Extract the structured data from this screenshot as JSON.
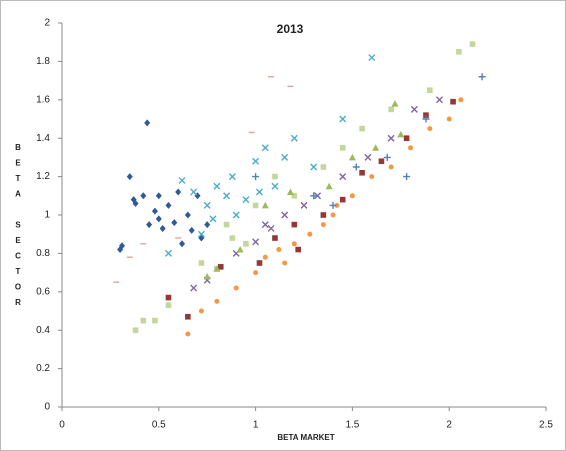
{
  "chart_data": {
    "type": "scatter",
    "title": "2013",
    "x_label": "BETA MARKET",
    "y_label": "BETA SECTOR",
    "xlim": [
      0,
      2.5
    ],
    "xticks": [
      0,
      0.5,
      1,
      1.5,
      2,
      2.5
    ],
    "ylim": [
      0,
      2
    ],
    "yticks": [
      0,
      0.2,
      0.4,
      0.6,
      0.8,
      1,
      1.2,
      1.4,
      1.6,
      1.8,
      2
    ],
    "grid": false,
    "series": [
      {
        "color": "#2e5a9c",
        "marker": "diamond",
        "x": [
          0.3,
          0.31,
          0.37,
          0.38,
          0.42,
          0.44,
          0.45,
          0.48,
          0.5,
          0.52,
          0.55,
          0.58,
          0.6,
          0.62,
          0.65,
          0.67,
          0.7,
          0.72,
          0.75,
          0.5,
          0.35
        ],
        "values": [
          0.82,
          0.84,
          1.08,
          1.06,
          1.1,
          1.48,
          0.95,
          1.02,
          0.98,
          0.93,
          1.05,
          0.96,
          1.12,
          0.85,
          1.0,
          0.92,
          1.1,
          0.88,
          0.95,
          1.1,
          1.2
        ]
      },
      {
        "color": "#4bacc6",
        "marker": "x",
        "x": [
          0.55,
          0.62,
          0.68,
          0.72,
          0.75,
          0.8,
          0.85,
          0.88,
          0.9,
          0.95,
          1.0,
          1.05,
          1.1,
          1.15,
          1.2,
          1.3,
          1.45,
          1.6,
          0.78,
          1.02
        ],
        "values": [
          0.8,
          1.18,
          1.12,
          0.9,
          1.05,
          1.15,
          1.1,
          1.2,
          1.0,
          1.08,
          1.28,
          1.35,
          1.15,
          1.3,
          1.4,
          1.25,
          1.5,
          1.82,
          0.98,
          1.12
        ]
      },
      {
        "color": "#c3d69b",
        "marker": "square",
        "x": [
          0.38,
          0.42,
          0.48,
          0.55,
          0.72,
          0.8,
          0.88,
          0.95,
          1.0,
          1.1,
          1.2,
          1.35,
          1.45,
          1.55,
          1.7,
          1.9,
          2.05,
          2.12,
          0.85
        ],
        "values": [
          0.4,
          0.45,
          0.45,
          0.53,
          0.75,
          0.72,
          0.88,
          0.85,
          1.05,
          1.2,
          1.1,
          1.25,
          1.35,
          1.45,
          1.55,
          1.65,
          1.85,
          1.89,
          0.95
        ]
      },
      {
        "color": "#f79646",
        "marker": "circle",
        "x": [
          0.65,
          0.72,
          0.8,
          0.9,
          1.0,
          1.05,
          1.12,
          1.2,
          1.28,
          1.35,
          1.42,
          1.5,
          1.6,
          1.7,
          1.8,
          1.9,
          2.0,
          2.06,
          1.15,
          1.4
        ],
        "values": [
          0.38,
          0.5,
          0.55,
          0.62,
          0.7,
          0.78,
          0.82,
          0.85,
          0.9,
          0.95,
          1.05,
          1.1,
          1.2,
          1.25,
          1.35,
          1.45,
          1.5,
          1.6,
          0.75,
          1.0
        ]
      },
      {
        "color": "#953735",
        "marker": "square",
        "x": [
          0.55,
          0.65,
          0.82,
          1.02,
          1.1,
          1.22,
          1.35,
          1.45,
          1.55,
          1.65,
          1.78,
          1.88,
          2.02,
          1.2
        ],
        "values": [
          0.57,
          0.47,
          0.73,
          0.75,
          0.88,
          0.82,
          1.0,
          1.08,
          1.22,
          1.28,
          1.4,
          1.52,
          1.59,
          0.95
        ]
      },
      {
        "color": "#8064a2",
        "marker": "x",
        "x": [
          0.68,
          0.75,
          0.9,
          1.0,
          1.08,
          1.15,
          1.25,
          1.32,
          1.45,
          1.58,
          1.7,
          1.82,
          1.95,
          1.05
        ],
        "values": [
          0.62,
          0.66,
          0.8,
          0.86,
          0.93,
          1.0,
          1.05,
          1.1,
          1.2,
          1.3,
          1.4,
          1.55,
          1.6,
          0.95
        ]
      },
      {
        "color": "#9bbb59",
        "marker": "triangle",
        "x": [
          0.75,
          0.8,
          0.92,
          1.05,
          1.18,
          1.38,
          1.5,
          1.72,
          1.75,
          1.62
        ],
        "values": [
          0.68,
          0.72,
          0.82,
          1.05,
          1.12,
          1.15,
          1.3,
          1.58,
          1.42,
          1.35
        ]
      },
      {
        "color": "#4f81bd",
        "marker": "plus",
        "x": [
          1.0,
          1.3,
          1.52,
          1.68,
          1.78,
          2.17,
          1.88,
          1.4
        ],
        "values": [
          1.2,
          1.1,
          1.25,
          1.3,
          1.2,
          1.72,
          1.5,
          1.05
        ]
      },
      {
        "color": "#e6a0a0",
        "marker": "dash",
        "x": [
          0.28,
          0.35,
          0.42,
          1.08,
          1.18,
          0.98,
          0.6
        ],
        "values": [
          0.65,
          0.78,
          0.85,
          1.72,
          1.67,
          1.43,
          0.88
        ]
      }
    ]
  }
}
